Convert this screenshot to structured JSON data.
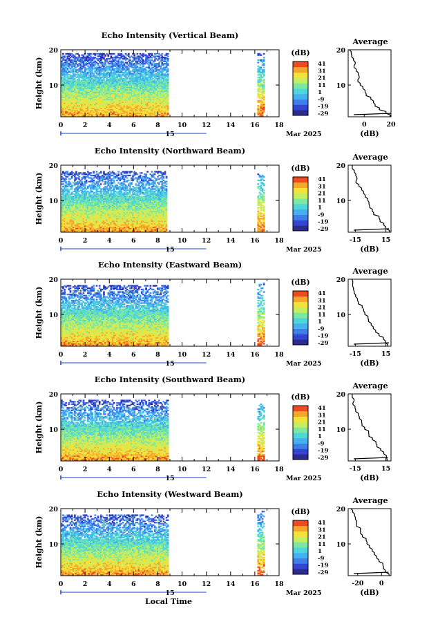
{
  "colors": {
    "colormap": [
      "#2b2a8e",
      "#3346d2",
      "#3f7fe8",
      "#45b1ee",
      "#4fd6d8",
      "#7fe89f",
      "#c7ee5f",
      "#f4e23b",
      "#f7a62c",
      "#ee4b22"
    ],
    "axis": "#000000",
    "time_axis_accent": "#1f3cc8"
  },
  "chart_data": [
    {
      "type": "heatmap",
      "title": "Echo Intensity (Vertical Beam)",
      "ylabel": "Height (km)",
      "yticks": [
        "10",
        "20"
      ],
      "ylim": [
        1,
        20
      ],
      "xticks": [
        "0",
        "2",
        "4",
        "6",
        "8",
        "10",
        "12",
        "14",
        "16",
        "18"
      ],
      "xlim": [
        0,
        18
      ],
      "date_labels": [
        "15",
        "Mar 2025"
      ],
      "colorbar_unit": "(dB)",
      "colorbar_ticks": [
        "41",
        "31",
        "21",
        "11",
        "1",
        "-9",
        "-19",
        "-29"
      ],
      "data_segments": [
        {
          "x_start": 0,
          "x_end": 8.8,
          "max_height": 19
        },
        {
          "x_start": 16.2,
          "x_end": 16.8,
          "max_height": 19
        }
      ],
      "profile": {
        "title": "Average",
        "xlabel": "(dB)",
        "xticks": [
          "0",
          "20"
        ],
        "xlim": [
          -12,
          20
        ],
        "heights": [
          1,
          2,
          3,
          4,
          5,
          6,
          7,
          8,
          9,
          10,
          11,
          12,
          13,
          14,
          15,
          16,
          17,
          18,
          19,
          20
        ],
        "values": [
          20,
          16,
          12,
          9,
          6,
          4,
          2,
          0,
          -2,
          -3,
          -4,
          -3,
          -5,
          -6,
          -8,
          -7,
          -8,
          -9,
          -10,
          -11
        ]
      }
    },
    {
      "type": "heatmap",
      "title": "Echo Intensity (Northward Beam)",
      "ylabel": "Height (km)",
      "yticks": [
        "10",
        "20"
      ],
      "ylim": [
        1,
        20
      ],
      "xticks": [
        "0",
        "2",
        "4",
        "6",
        "8",
        "10",
        "12",
        "14",
        "16",
        "18"
      ],
      "xlim": [
        0,
        18
      ],
      "date_labels": [
        "15",
        "Mar 2025"
      ],
      "colorbar_unit": "(dB)",
      "colorbar_ticks": [
        "41",
        "31",
        "21",
        "11",
        "1",
        "-9",
        "-19",
        "-29"
      ],
      "data_segments": [
        {
          "x_start": 0,
          "x_end": 8.7,
          "max_height": 18
        },
        {
          "x_start": 16.2,
          "x_end": 16.8,
          "max_height": 18
        }
      ],
      "profile": {
        "title": "Average",
        "xlabel": "(dB)",
        "xticks": [
          "-15",
          "15"
        ],
        "xlim": [
          -22,
          20
        ],
        "heights": [
          1,
          2,
          3,
          4,
          5,
          6,
          7,
          8,
          9,
          10,
          11,
          12,
          13,
          14,
          15,
          16,
          17,
          18,
          19,
          20
        ],
        "values": [
          18,
          15,
          12,
          9,
          7,
          4,
          2,
          0,
          -2,
          -4,
          -6,
          -8,
          -10,
          -11,
          -13,
          -14,
          -15,
          -16,
          -17,
          -18
        ]
      }
    },
    {
      "type": "heatmap",
      "title": "Echo Intensity (Eastward Beam)",
      "ylabel": "Height (km)",
      "yticks": [
        "10",
        "20"
      ],
      "ylim": [
        1,
        20
      ],
      "xticks": [
        "0",
        "2",
        "4",
        "6",
        "8",
        "10",
        "12",
        "14",
        "16",
        "18"
      ],
      "xlim": [
        0,
        18
      ],
      "date_labels": [
        "15",
        "Mar 2025"
      ],
      "colorbar_unit": "(dB)",
      "colorbar_ticks": [
        "41",
        "31",
        "21",
        "11",
        "1",
        "-9",
        "-19",
        "-29"
      ],
      "data_segments": [
        {
          "x_start": 0,
          "x_end": 8.8,
          "max_height": 18
        },
        {
          "x_start": 16.2,
          "x_end": 16.8,
          "max_height": 19
        }
      ],
      "profile": {
        "title": "Average",
        "xlabel": "(dB)",
        "xticks": [
          "-15",
          "15"
        ],
        "xlim": [
          -22,
          20
        ],
        "heights": [
          1,
          2,
          3,
          4,
          5,
          6,
          7,
          8,
          9,
          10,
          11,
          12,
          13,
          14,
          15,
          16,
          17,
          18,
          19,
          20
        ],
        "values": [
          18,
          15,
          12,
          9,
          6,
          3,
          1,
          -1,
          -3,
          -5,
          -7,
          -9,
          -11,
          -13,
          -14,
          -15,
          -16,
          -17,
          -17,
          -18
        ]
      }
    },
    {
      "type": "heatmap",
      "title": "Echo Intensity (Southward Beam)",
      "ylabel": "Height (km)",
      "yticks": [
        "10",
        "20"
      ],
      "ylim": [
        1,
        20
      ],
      "xticks": [
        "0",
        "2",
        "4",
        "6",
        "8",
        "10",
        "12",
        "14",
        "16",
        "18"
      ],
      "xlim": [
        0,
        18
      ],
      "date_labels": [
        "15",
        "Mar 2025"
      ],
      "colorbar_unit": "(dB)",
      "colorbar_ticks": [
        "41",
        "31",
        "21",
        "11",
        "1",
        "-9",
        "-19",
        "-29"
      ],
      "data_segments": [
        {
          "x_start": 0,
          "x_end": 8.8,
          "max_height": 18
        },
        {
          "x_start": 16.2,
          "x_end": 16.8,
          "max_height": 17
        }
      ],
      "profile": {
        "title": "Average",
        "xlabel": "(dB)",
        "xticks": [
          "-15",
          "15"
        ],
        "xlim": [
          -22,
          20
        ],
        "heights": [
          1,
          2,
          3,
          4,
          5,
          6,
          7,
          8,
          9,
          10,
          11,
          12,
          13,
          14,
          15,
          16,
          17,
          18,
          19,
          20
        ],
        "values": [
          17,
          15,
          12,
          9,
          7,
          4,
          2,
          -1,
          -3,
          -6,
          -8,
          -10,
          -12,
          -11,
          -14,
          -15,
          -16,
          -17,
          -18,
          -18
        ]
      }
    },
    {
      "type": "heatmap",
      "title": "Echo Intensity (Westward Beam)",
      "ylabel": "Height (km)",
      "yticks": [
        "10",
        "20"
      ],
      "ylim": [
        1,
        20
      ],
      "xticks": [
        "0",
        "2",
        "4",
        "6",
        "8",
        "10",
        "12",
        "14",
        "16",
        "18"
      ],
      "xlim": [
        0,
        18
      ],
      "date_labels": [
        "15",
        "Mar 2025"
      ],
      "xlabel": "Local Time",
      "colorbar_unit": "(dB)",
      "colorbar_ticks": [
        "41",
        "31",
        "21",
        "11",
        "1",
        "-9",
        "-19",
        "-29"
      ],
      "data_segments": [
        {
          "x_start": 0,
          "x_end": 8.8,
          "max_height": 18
        },
        {
          "x_start": 16.2,
          "x_end": 16.8,
          "max_height": 20
        }
      ],
      "profile": {
        "title": "Average",
        "xlabel": "(dB)",
        "xticks": [
          "-20",
          "0"
        ],
        "xlim": [
          -28,
          8
        ],
        "heights": [
          1,
          2,
          3,
          4,
          5,
          6,
          7,
          8,
          9,
          10,
          11,
          12,
          13,
          14,
          15,
          16,
          17,
          18,
          19,
          20
        ],
        "values": [
          6,
          4,
          2,
          0,
          -2,
          -4,
          -6,
          -8,
          -10,
          -12,
          -14,
          -15,
          -17,
          -18,
          -20,
          -21,
          -22,
          -23,
          -24,
          -25
        ]
      }
    }
  ]
}
